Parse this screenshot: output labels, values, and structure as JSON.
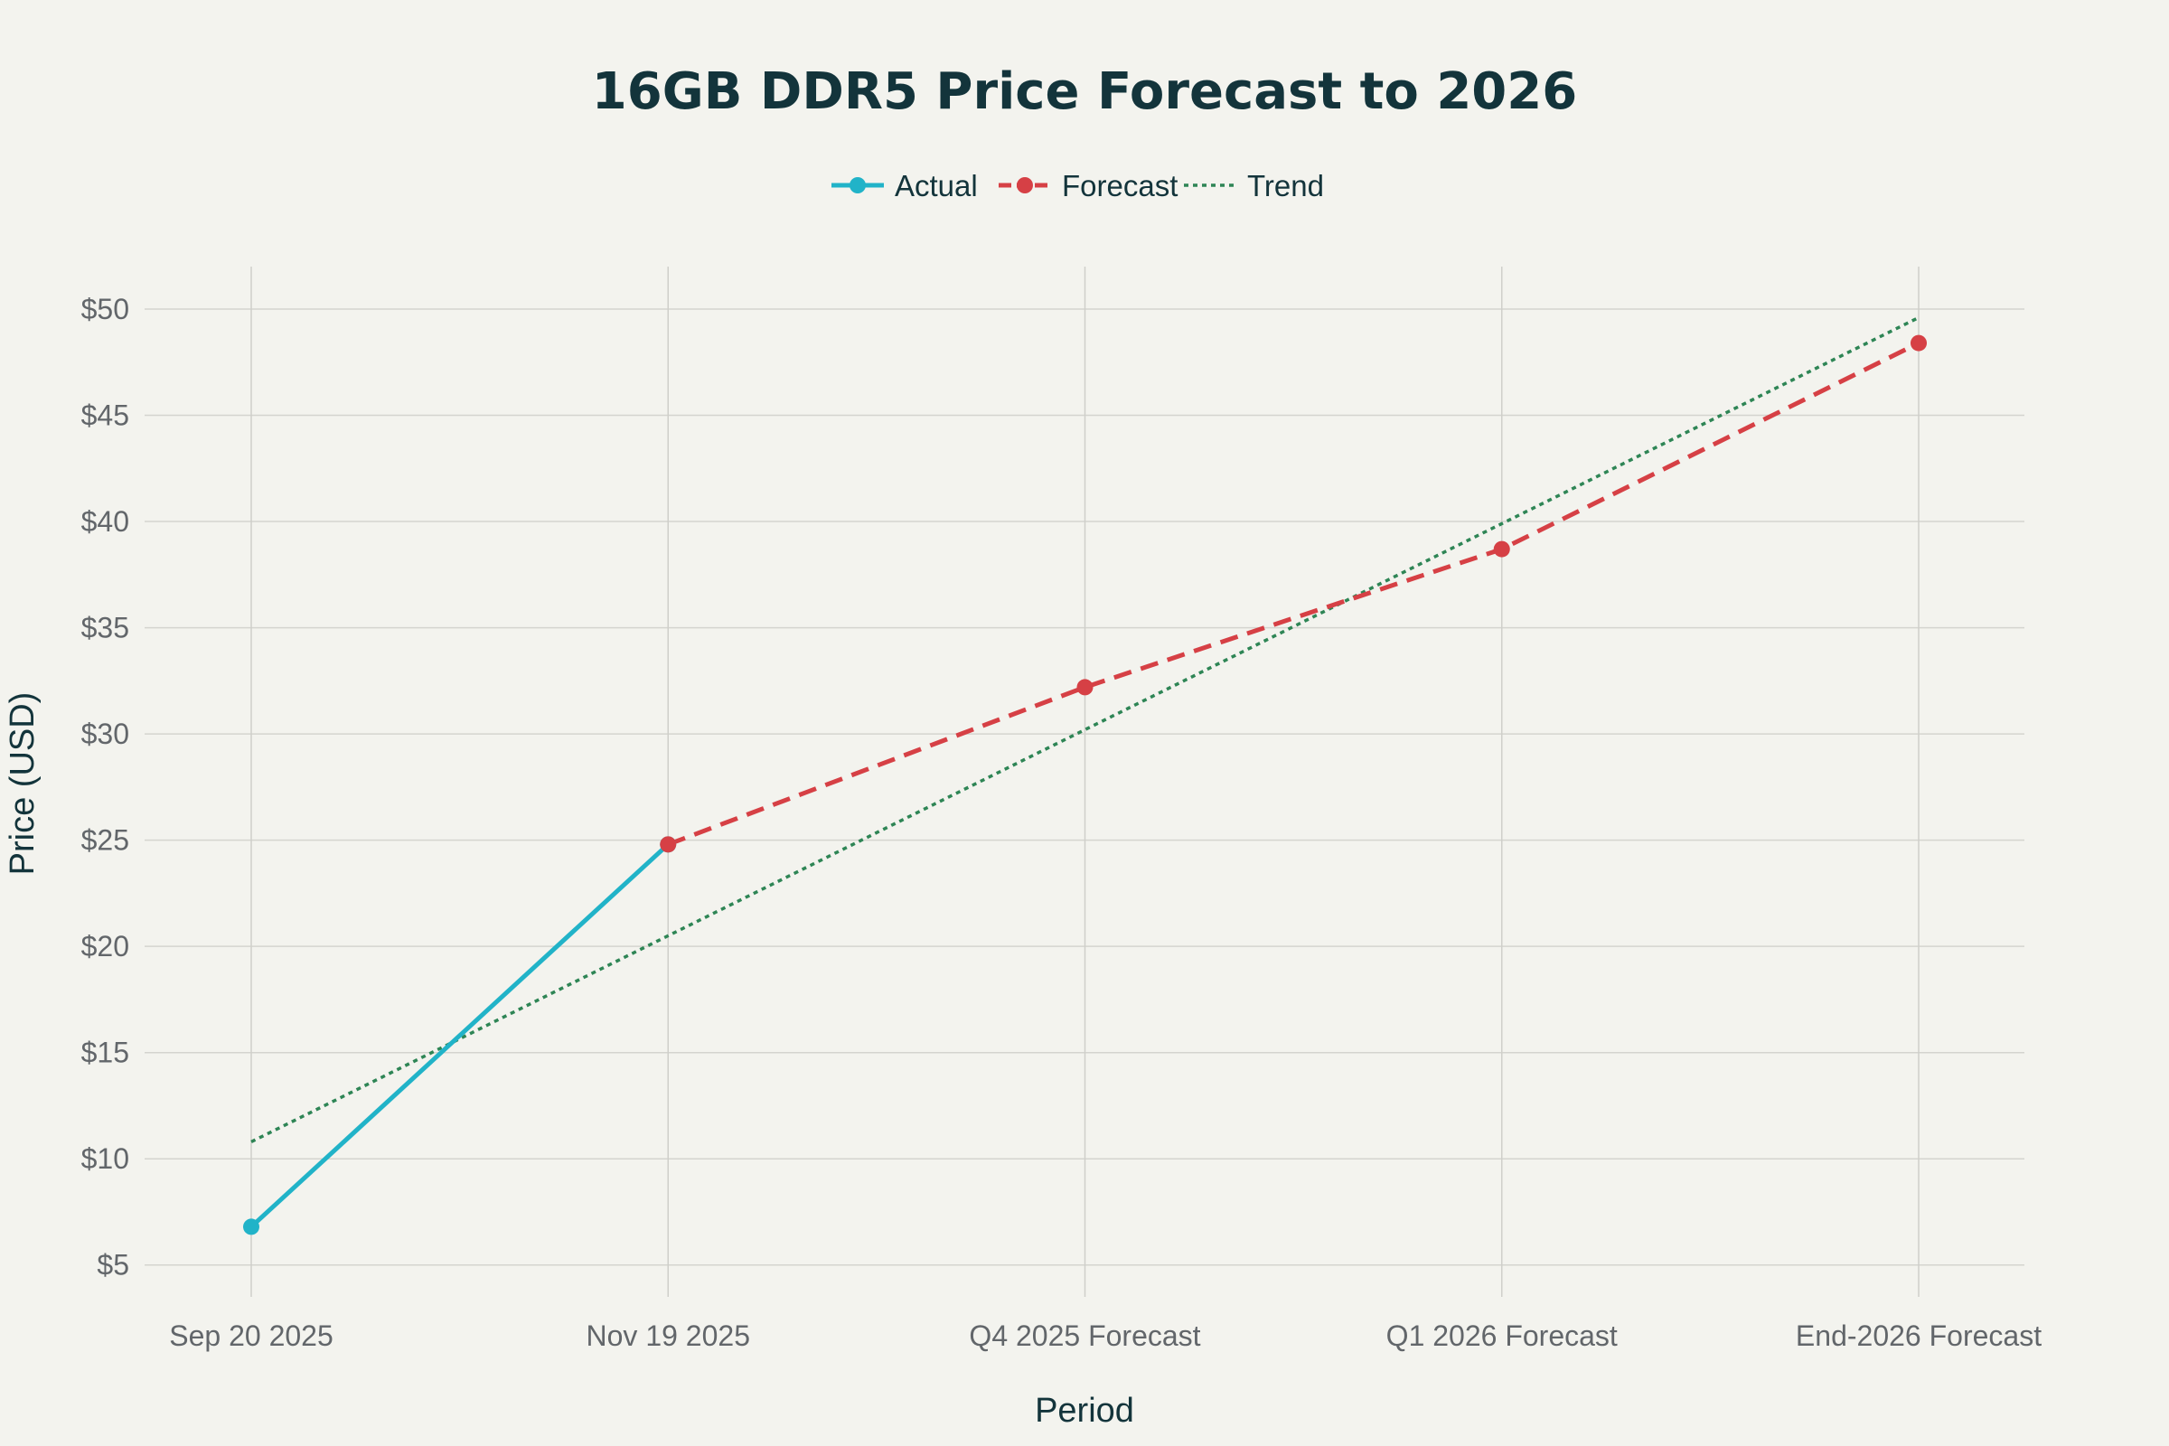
{
  "chart_data": {
    "type": "line",
    "title": "16GB DDR5 Price Forecast to 2026",
    "xlabel": "Period",
    "ylabel": "Price (USD)",
    "categories": [
      "Sep 20 2025",
      "Nov 19 2025",
      "Q4 2025 Forecast",
      "Q1 2026 Forecast",
      "End-2026 Forecast"
    ],
    "ylim": [
      3.5,
      52
    ],
    "yticks": [
      5,
      10,
      15,
      20,
      25,
      30,
      35,
      40,
      45,
      50
    ],
    "ytick_labels": [
      "$5",
      "$10",
      "$15",
      "$20",
      "$25",
      "$30",
      "$35",
      "$40",
      "$45",
      "$50"
    ],
    "grid": true,
    "legend_position": "top-center",
    "series": [
      {
        "name": "Actual",
        "color": "#21b3c8",
        "style": "solid",
        "markers": true,
        "points": [
          {
            "category": "Sep 20 2025",
            "value": 6.8
          },
          {
            "category": "Nov 19 2025",
            "value": 24.8
          }
        ]
      },
      {
        "name": "Forecast",
        "color": "#d64045",
        "style": "dashed",
        "markers": true,
        "points": [
          {
            "category": "Nov 19 2025",
            "value": 24.8
          },
          {
            "category": "Q4 2025 Forecast",
            "value": 32.2
          },
          {
            "category": "Q1 2026 Forecast",
            "value": 38.7
          },
          {
            "category": "End-2026 Forecast",
            "value": 48.4
          }
        ]
      },
      {
        "name": "Trend",
        "color": "#2e8555",
        "style": "dotted",
        "markers": false,
        "points": [
          {
            "category": "Sep 20 2025",
            "value": 10.8
          },
          {
            "category": "End-2026 Forecast",
            "value": 49.6
          }
        ]
      }
    ]
  }
}
